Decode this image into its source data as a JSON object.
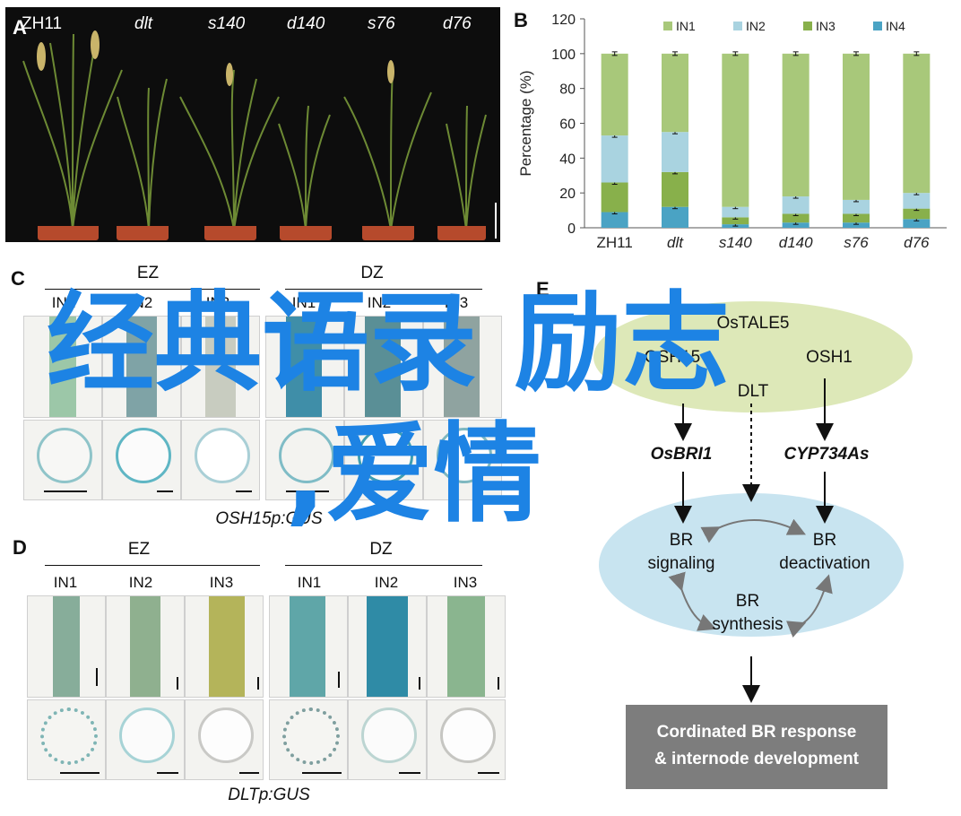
{
  "panels": {
    "a": {
      "letter": "A",
      "plants": [
        "ZH11",
        "dlt",
        "s140",
        "d140",
        "s76",
        "d76"
      ]
    },
    "b": {
      "letter": "B",
      "legend": [
        "IN1",
        "IN2",
        "IN3",
        "IN4"
      ]
    },
    "c": {
      "letter": "C",
      "zones": [
        "EZ",
        "DZ"
      ],
      "internodes": [
        "IN1",
        "IN2",
        "IN3",
        "IN1",
        "IN2",
        "IN3"
      ],
      "caption": "OSH15p:GUS"
    },
    "d": {
      "letter": "D",
      "zones": [
        "EZ",
        "DZ"
      ],
      "internodes": [
        "IN1",
        "IN2",
        "IN3",
        "IN1",
        "IN2",
        "IN3"
      ],
      "caption": "DLTp:GUS"
    },
    "e": {
      "letter": "E",
      "complex": {
        "top": "OsTALE5",
        "left": "OSH15",
        "right": "OSH1",
        "bottom": "DLT"
      },
      "targets": [
        "OsBRI1",
        "CYP734As"
      ],
      "cycle": {
        "signaling": "BR\nsignaling",
        "deactivation": "BR\ndeactivation",
        "synthesis": "BR\nsynthesis"
      },
      "response": "Cordinated BR response\n& internode development",
      "colors": {
        "complex": "#dde8b8",
        "cycle": "#c8e4f0",
        "response": "#7d7d7d"
      }
    }
  },
  "overlay": {
    "line1": "经典语录 励志",
    "line2": ",爱情",
    "color": "#1d83e4"
  },
  "chart_data": {
    "type": "bar",
    "stacked": true,
    "categories": [
      "ZH11",
      "dlt",
      "s140",
      "d140",
      "s76",
      "d76"
    ],
    "series": [
      {
        "name": "IN4",
        "values": [
          9,
          12,
          2,
          3,
          3,
          5
        ],
        "color": "#4aa3c4"
      },
      {
        "name": "IN3",
        "values": [
          17,
          20,
          4,
          5,
          5,
          6
        ],
        "color": "#88b04b"
      },
      {
        "name": "IN2",
        "values": [
          27,
          23,
          6,
          10,
          8,
          9
        ],
        "color": "#a9d3e0"
      },
      {
        "name": "IN1",
        "values": [
          47,
          45,
          88,
          82,
          84,
          80
        ],
        "color": "#a8c87a"
      }
    ],
    "ylabel": "Percentage (%)",
    "ylim": [
      0,
      120
    ],
    "yticks": [
      0,
      20,
      40,
      60,
      80,
      100,
      120
    ],
    "error_bars": true,
    "legend_position": "top"
  }
}
